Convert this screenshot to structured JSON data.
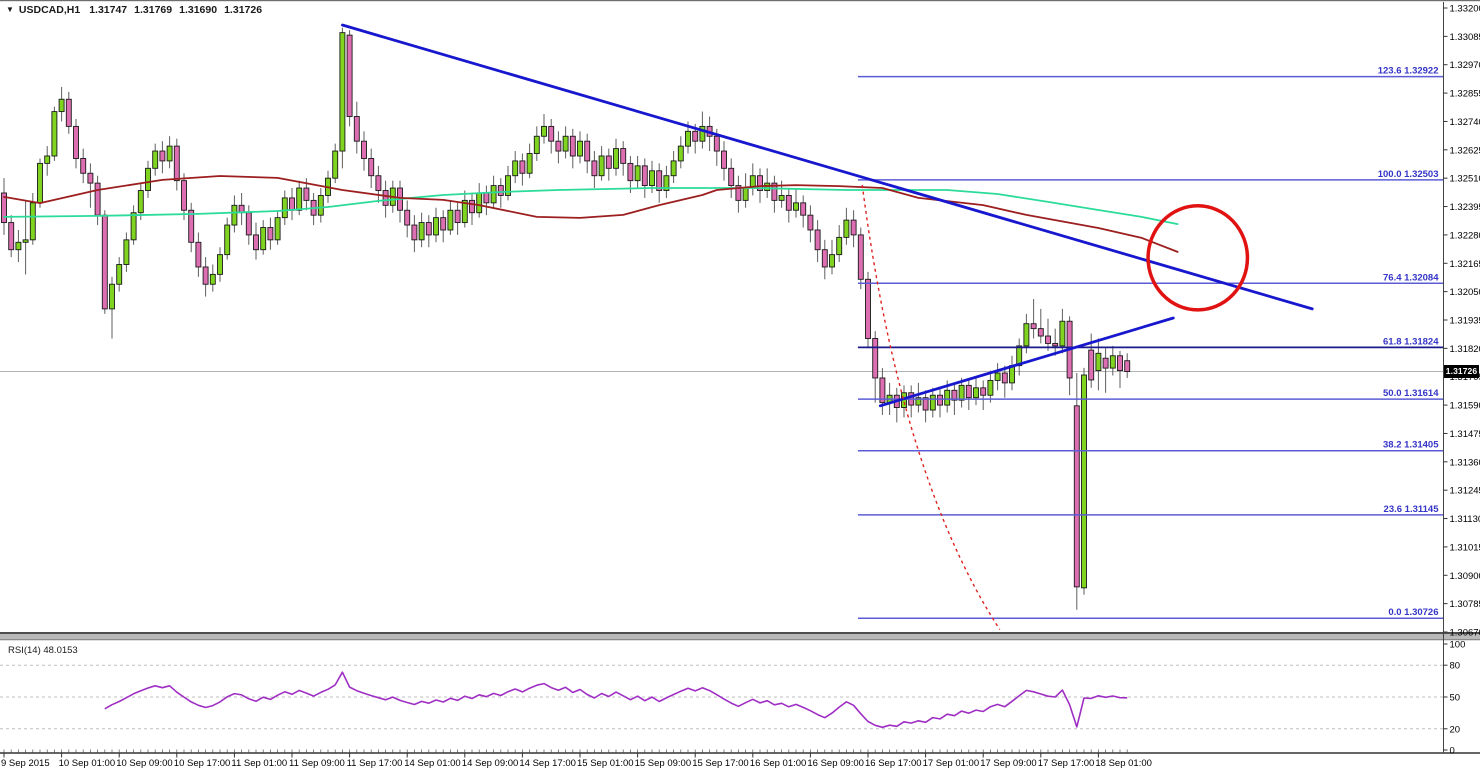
{
  "quote_header": {
    "dropdown_icon": "▼",
    "symbol": "USDCAD,H1",
    "open": "1.31747",
    "high": "1.31769",
    "low": "1.31690",
    "close": "1.31726"
  },
  "price_axis": {
    "ticks": [
      "1.33200",
      "1.33085",
      "1.32970",
      "1.32855",
      "1.32740",
      "1.32625",
      "1.32510",
      "1.32395",
      "1.32280",
      "1.32165",
      "1.32050",
      "1.31935",
      "1.31820",
      "1.31705",
      "1.31590",
      "1.31475",
      "1.31360",
      "1.31245",
      "1.31130",
      "1.31015",
      "1.30900",
      "1.30785",
      "1.30670"
    ],
    "current_price": "1.31726"
  },
  "time_axis": {
    "labels": [
      "9 Sep 2015",
      "10 Sep 01:00",
      "10 Sep 09:00",
      "10 Sep 17:00",
      "11 Sep 01:00",
      "11 Sep 09:00",
      "11 Sep 17:00",
      "14 Sep 01:00",
      "14 Sep 09:00",
      "14 Sep 17:00",
      "15 Sep 01:00",
      "15 Sep 09:00",
      "15 Sep 17:00",
      "16 Sep 01:00",
      "16 Sep 09:00",
      "16 Sep 17:00",
      "17 Sep 01:00",
      "17 Sep 09:00",
      "17 Sep 17:00",
      "18 Sep 01:00"
    ]
  },
  "rsi_panel": {
    "label": "RSI(14) 48.0153",
    "ticks": [
      "100",
      "80",
      "50",
      "20",
      "0"
    ]
  },
  "colors": {
    "bull": "#7FD41F",
    "bear": "#DE6EB2",
    "body_outline": "#1A1A1A",
    "wick": "#5E5E5E",
    "ma_fast": "#2BDB9A",
    "ma_slow": "#9C1E1E",
    "trendline": "#1717CE",
    "fib_line": "#5C5CD6",
    "fib_emphasis": "#1A1A8E",
    "fib_label": "#3434C8",
    "annotation_red": "#E01212",
    "rsi_line": "#9F2FC4",
    "price_line": "#B4B4B4",
    "axis_text": "#000000",
    "grid_dash": "#BFBFBF",
    "tag_bg": "#000000",
    "tag_text": "#FFFFFF"
  },
  "chart_data": {
    "type": "candlestick",
    "symbol": "USDCAD",
    "timeframe": "H1",
    "title": "USDCAD,H1",
    "ohlc_display": {
      "open": 1.31747,
      "high": 1.31769,
      "low": 1.3169,
      "close": 1.31726
    },
    "y_axis": {
      "top": 1.332,
      "bottom": 1.3067,
      "tick_step": 0.00115
    },
    "x_labels": [
      "9 Sep 2015",
      "10 Sep 01:00",
      "10 Sep 09:00",
      "10 Sep 17:00",
      "11 Sep 01:00",
      "11 Sep 09:00",
      "11 Sep 17:00",
      "14 Sep 01:00",
      "14 Sep 09:00",
      "14 Sep 17:00",
      "15 Sep 01:00",
      "15 Sep 09:00",
      "15 Sep 17:00",
      "16 Sep 01:00",
      "16 Sep 09:00",
      "16 Sep 17:00",
      "17 Sep 01:00",
      "17 Sep 09:00",
      "17 Sep 17:00",
      "18 Sep 01:00"
    ],
    "bars_per_label": 8,
    "candles": [
      [
        1.3245,
        1.3251,
        1.3228,
        1.3233
      ],
      [
        1.3233,
        1.3236,
        1.3219,
        1.3222
      ],
      [
        1.3222,
        1.323,
        1.3217,
        1.3225
      ],
      [
        1.3225,
        1.3242,
        1.3212,
        1.3226
      ],
      [
        1.3226,
        1.3245,
        1.3224,
        1.3241
      ],
      [
        1.3241,
        1.3259,
        1.3239,
        1.3257
      ],
      [
        1.3257,
        1.3264,
        1.3252,
        1.326
      ],
      [
        1.326,
        1.328,
        1.3258,
        1.3278
      ],
      [
        1.3278,
        1.3288,
        1.3274,
        1.3283
      ],
      [
        1.3283,
        1.3286,
        1.3269,
        1.3272
      ],
      [
        1.3272,
        1.3275,
        1.3255,
        1.3259
      ],
      [
        1.3259,
        1.3263,
        1.3249,
        1.3253
      ],
      [
        1.3253,
        1.3257,
        1.3239,
        1.3249
      ],
      [
        1.3249,
        1.3252,
        1.3232,
        1.3236
      ],
      [
        1.3236,
        1.3238,
        1.3196,
        1.3198
      ],
      [
        1.3198,
        1.3211,
        1.3186,
        1.3208
      ],
      [
        1.3208,
        1.3219,
        1.3205,
        1.3216
      ],
      [
        1.3216,
        1.3229,
        1.3213,
        1.3226
      ],
      [
        1.3226,
        1.324,
        1.3224,
        1.3237
      ],
      [
        1.3237,
        1.3249,
        1.3234,
        1.3246
      ],
      [
        1.3246,
        1.3258,
        1.3243,
        1.3255
      ],
      [
        1.3255,
        1.3265,
        1.3252,
        1.3262
      ],
      [
        1.3262,
        1.3266,
        1.3253,
        1.3258
      ],
      [
        1.3258,
        1.3268,
        1.3255,
        1.3264
      ],
      [
        1.3264,
        1.3267,
        1.3246,
        1.325
      ],
      [
        1.325,
        1.3253,
        1.3234,
        1.3238
      ],
      [
        1.3238,
        1.3241,
        1.3221,
        1.3225
      ],
      [
        1.3225,
        1.3229,
        1.3211,
        1.3215
      ],
      [
        1.3215,
        1.3219,
        1.3203,
        1.3208
      ],
      [
        1.3208,
        1.3216,
        1.3205,
        1.3212
      ],
      [
        1.3212,
        1.3223,
        1.3209,
        1.322
      ],
      [
        1.322,
        1.3235,
        1.3218,
        1.3232
      ],
      [
        1.3232,
        1.3244,
        1.3229,
        1.324
      ],
      [
        1.324,
        1.3245,
        1.3232,
        1.3237
      ],
      [
        1.3237,
        1.324,
        1.3224,
        1.3228
      ],
      [
        1.3228,
        1.3233,
        1.3218,
        1.3222
      ],
      [
        1.3222,
        1.3234,
        1.322,
        1.3231
      ],
      [
        1.3231,
        1.3235,
        1.3222,
        1.3226
      ],
      [
        1.3226,
        1.3238,
        1.3224,
        1.3235
      ],
      [
        1.3235,
        1.3246,
        1.3232,
        1.3243
      ],
      [
        1.3243,
        1.3247,
        1.3234,
        1.3238
      ],
      [
        1.3238,
        1.325,
        1.3236,
        1.3247
      ],
      [
        1.3247,
        1.3251,
        1.3238,
        1.3242
      ],
      [
        1.3242,
        1.3245,
        1.3232,
        1.3236
      ],
      [
        1.3236,
        1.3247,
        1.3233,
        1.3244
      ],
      [
        1.3244,
        1.3254,
        1.3241,
        1.3251
      ],
      [
        1.3251,
        1.3265,
        1.3249,
        1.3262
      ],
      [
        1.3262,
        1.3312,
        1.3255,
        1.331
      ],
      [
        1.3309,
        1.3311,
        1.3272,
        1.3276
      ],
      [
        1.3276,
        1.3282,
        1.3261,
        1.3266
      ],
      [
        1.3266,
        1.327,
        1.3254,
        1.3259
      ],
      [
        1.3259,
        1.3263,
        1.3247,
        1.3252
      ],
      [
        1.3252,
        1.3256,
        1.3241,
        1.3246
      ],
      [
        1.3246,
        1.325,
        1.3235,
        1.324
      ],
      [
        1.324,
        1.325,
        1.3237,
        1.3247
      ],
      [
        1.3247,
        1.325,
        1.3233,
        1.3238
      ],
      [
        1.3238,
        1.3242,
        1.3227,
        1.3232
      ],
      [
        1.3232,
        1.3236,
        1.3221,
        1.3226
      ],
      [
        1.3226,
        1.3237,
        1.3223,
        1.3233
      ],
      [
        1.3233,
        1.3236,
        1.3223,
        1.3228
      ],
      [
        1.3228,
        1.3239,
        1.3225,
        1.3235
      ],
      [
        1.3235,
        1.3238,
        1.3225,
        1.323
      ],
      [
        1.323,
        1.3242,
        1.3228,
        1.3238
      ],
      [
        1.3238,
        1.3241,
        1.3228,
        1.3233
      ],
      [
        1.3233,
        1.3246,
        1.3231,
        1.3242
      ],
      [
        1.3242,
        1.3245,
        1.3232,
        1.3237
      ],
      [
        1.3237,
        1.3249,
        1.3235,
        1.3245
      ],
      [
        1.3245,
        1.3248,
        1.3236,
        1.3241
      ],
      [
        1.3241,
        1.3252,
        1.3239,
        1.3248
      ],
      [
        1.3248,
        1.3251,
        1.3239,
        1.3244
      ],
      [
        1.3244,
        1.3256,
        1.3242,
        1.3252
      ],
      [
        1.3252,
        1.3262,
        1.3249,
        1.3258
      ],
      [
        1.3258,
        1.3261,
        1.3248,
        1.3253
      ],
      [
        1.3253,
        1.3265,
        1.3251,
        1.3261
      ],
      [
        1.3261,
        1.3272,
        1.3258,
        1.3268
      ],
      [
        1.3268,
        1.3277,
        1.3265,
        1.3272
      ],
      [
        1.3272,
        1.3275,
        1.3261,
        1.3266
      ],
      [
        1.3266,
        1.327,
        1.3257,
        1.3262
      ],
      [
        1.3262,
        1.3272,
        1.3259,
        1.3268
      ],
      [
        1.3268,
        1.3271,
        1.3255,
        1.326
      ],
      [
        1.326,
        1.327,
        1.3257,
        1.3266
      ],
      [
        1.3266,
        1.3269,
        1.3253,
        1.3258
      ],
      [
        1.3258,
        1.3262,
        1.3247,
        1.3252
      ],
      [
        1.3252,
        1.3264,
        1.325,
        1.326
      ],
      [
        1.326,
        1.3263,
        1.325,
        1.3255
      ],
      [
        1.3255,
        1.3267,
        1.3252,
        1.3263
      ],
      [
        1.3263,
        1.3266,
        1.3252,
        1.3257
      ],
      [
        1.3257,
        1.326,
        1.3245,
        1.325
      ],
      [
        1.325,
        1.326,
        1.3247,
        1.3256
      ],
      [
        1.3256,
        1.3259,
        1.3243,
        1.3248
      ],
      [
        1.3248,
        1.3258,
        1.3245,
        1.3254
      ],
      [
        1.3254,
        1.3257,
        1.3241,
        1.3246
      ],
      [
        1.3246,
        1.3256,
        1.3243,
        1.3252
      ],
      [
        1.3252,
        1.3262,
        1.3249,
        1.3258
      ],
      [
        1.3258,
        1.3268,
        1.3255,
        1.3264
      ],
      [
        1.3264,
        1.3274,
        1.3261,
        1.327
      ],
      [
        1.327,
        1.3273,
        1.3261,
        1.3266
      ],
      [
        1.3266,
        1.3278,
        1.3263,
        1.3272
      ],
      [
        1.3272,
        1.3276,
        1.3262,
        1.3268
      ],
      [
        1.3268,
        1.3271,
        1.3256,
        1.3262
      ],
      [
        1.3262,
        1.3266,
        1.325,
        1.3255
      ],
      [
        1.3255,
        1.3259,
        1.3243,
        1.3248
      ],
      [
        1.3248,
        1.3252,
        1.3237,
        1.3242
      ],
      [
        1.3242,
        1.3253,
        1.3239,
        1.3247
      ],
      [
        1.3247,
        1.3257,
        1.3244,
        1.3252
      ],
      [
        1.3252,
        1.3255,
        1.3241,
        1.3246
      ],
      [
        1.3246,
        1.3255,
        1.3243,
        1.3249
      ],
      [
        1.3249,
        1.3252,
        1.3237,
        1.3242
      ],
      [
        1.3242,
        1.325,
        1.3239,
        1.3244
      ],
      [
        1.3244,
        1.3247,
        1.3233,
        1.3238
      ],
      [
        1.3238,
        1.3247,
        1.3235,
        1.3241
      ],
      [
        1.3241,
        1.3244,
        1.3231,
        1.3236
      ],
      [
        1.3236,
        1.324,
        1.3225,
        1.323
      ],
      [
        1.323,
        1.3234,
        1.3217,
        1.3222
      ],
      [
        1.3222,
        1.3226,
        1.321,
        1.3215
      ],
      [
        1.3215,
        1.3226,
        1.3212,
        1.322
      ],
      [
        1.322,
        1.3232,
        1.3217,
        1.3227
      ],
      [
        1.3227,
        1.3239,
        1.3224,
        1.3234
      ],
      [
        1.3234,
        1.3238,
        1.3223,
        1.3228
      ],
      [
        1.3228,
        1.3231,
        1.3206,
        1.321
      ],
      [
        1.321,
        1.3213,
        1.3182,
        1.3186
      ],
      [
        1.3186,
        1.3189,
        1.316,
        1.317
      ],
      [
        1.317,
        1.3174,
        1.3155,
        1.316
      ],
      [
        1.316,
        1.3168,
        1.3155,
        1.3163
      ],
      [
        1.3163,
        1.3166,
        1.3152,
        1.3158
      ],
      [
        1.3158,
        1.3167,
        1.3154,
        1.3164
      ],
      [
        1.3164,
        1.3167,
        1.3154,
        1.3159
      ],
      [
        1.3159,
        1.3168,
        1.3156,
        1.3162
      ],
      [
        1.3162,
        1.3165,
        1.3152,
        1.3157
      ],
      [
        1.3157,
        1.3166,
        1.3154,
        1.3163
      ],
      [
        1.3163,
        1.3166,
        1.3154,
        1.3159
      ],
      [
        1.3159,
        1.3169,
        1.3156,
        1.3165
      ],
      [
        1.3165,
        1.3168,
        1.3155,
        1.3161
      ],
      [
        1.3161,
        1.317,
        1.3158,
        1.3167
      ],
      [
        1.3167,
        1.317,
        1.3157,
        1.3162
      ],
      [
        1.3162,
        1.317,
        1.3159,
        1.3166
      ],
      [
        1.3166,
        1.3169,
        1.3157,
        1.3163
      ],
      [
        1.3163,
        1.3173,
        1.316,
        1.3169
      ],
      [
        1.3169,
        1.3176,
        1.3165,
        1.3172
      ],
      [
        1.3172,
        1.3175,
        1.3162,
        1.3168
      ],
      [
        1.3168,
        1.3179,
        1.3165,
        1.3175
      ],
      [
        1.3175,
        1.3186,
        1.3171,
        1.3183
      ],
      [
        1.3183,
        1.3196,
        1.318,
        1.3192
      ],
      [
        1.3192,
        1.3202,
        1.3186,
        1.319
      ],
      [
        1.319,
        1.3198,
        1.3184,
        1.3187
      ],
      [
        1.3187,
        1.3194,
        1.3181,
        1.3184
      ],
      [
        1.3184,
        1.319,
        1.3179,
        1.3183
      ],
      [
        1.3183,
        1.3198,
        1.318,
        1.3193
      ],
      [
        1.3193,
        1.3195,
        1.3163,
        1.317
      ],
      [
        1.31587,
        1.3172,
        1.3076,
        1.30853
      ],
      [
        1.30849,
        1.31741,
        1.30821,
        1.31712
      ],
      [
        1.31813,
        1.3188,
        1.3166,
        1.31692
      ],
      [
        1.3173,
        1.3186,
        1.3165,
        1.318
      ],
      [
        1.3178,
        1.3182,
        1.3164,
        1.3174
      ],
      [
        1.3174,
        1.3183,
        1.3171,
        1.3179
      ],
      [
        1.3179,
        1.3181,
        1.3166,
        1.3173
      ],
      [
        1.3177,
        1.318,
        1.317,
        1.31726
      ]
    ],
    "moving_averages": [
      {
        "name": "ma-fast-teal",
        "color": "#2BDB9A",
        "points": [
          [
            0,
            1.32353
          ],
          [
            13,
            1.32357
          ],
          [
            27,
            1.32365
          ],
          [
            38,
            1.32377
          ],
          [
            45,
            1.32393
          ],
          [
            52,
            1.32418
          ],
          [
            61,
            1.32442
          ],
          [
            69,
            1.32454
          ],
          [
            77,
            1.32462
          ],
          [
            90,
            1.3247
          ],
          [
            104,
            1.3247
          ],
          [
            117,
            1.32462
          ],
          [
            131,
            1.32462
          ],
          [
            138,
            1.32446
          ],
          [
            145,
            1.32414
          ],
          [
            152,
            1.32381
          ],
          [
            158,
            1.32353
          ],
          [
            163,
            1.32324
          ]
        ]
      },
      {
        "name": "ma-slow-darkred",
        "color": "#9C1E1E",
        "points": [
          [
            0,
            1.32434
          ],
          [
            5,
            1.32409
          ],
          [
            13,
            1.32462
          ],
          [
            22,
            1.32503
          ],
          [
            30,
            1.32519
          ],
          [
            38,
            1.32511
          ],
          [
            47,
            1.32462
          ],
          [
            55,
            1.3243
          ],
          [
            61,
            1.32422
          ],
          [
            66,
            1.32401
          ],
          [
            74,
            1.32353
          ],
          [
            80,
            1.32349
          ],
          [
            86,
            1.32361
          ],
          [
            91,
            1.32401
          ],
          [
            97,
            1.32442
          ],
          [
            99,
            1.32462
          ],
          [
            105,
            1.32478
          ],
          [
            110,
            1.32482
          ],
          [
            116,
            1.32478
          ],
          [
            122,
            1.3247
          ],
          [
            127,
            1.3243
          ],
          [
            136,
            1.32401
          ],
          [
            142,
            1.32361
          ],
          [
            152,
            1.32308
          ],
          [
            158,
            1.32268
          ],
          [
            163,
            1.32211
          ]
        ]
      }
    ],
    "trendlines": [
      {
        "name": "descending-trendline",
        "color": "#1717CE",
        "from_bar": 47,
        "from_price": 1.33131,
        "to_bar": 181.7,
        "to_price": 1.3198
      },
      {
        "name": "ascending-trendline",
        "color": "#1717CE",
        "from_bar": 121.7,
        "from_price": 1.31587,
        "to_bar": 162.4,
        "to_price": 1.31943
      }
    ],
    "projection_dashed": {
      "color": "#E02020",
      "from_bar": 119.2,
      "from_price": 1.32482,
      "control_bar": 124.5,
      "control_price": 1.313,
      "to_bar": 138.3,
      "to_price": 1.3068
    },
    "circle_annotation": {
      "color": "#E01212",
      "center_bar": 165.8,
      "center_price": 1.32187,
      "radius_bars": 6.9,
      "radius_price": 0.00211
    },
    "fibonacci": {
      "start_bar": 118.6,
      "levels": [
        {
          "label": "123.6 1.32922",
          "price": 1.32922
        },
        {
          "label": "100.0 1.32503",
          "price": 1.32503
        },
        {
          "label": "76.4 1.32084",
          "price": 1.32084
        },
        {
          "label": "61.8 1.31824",
          "price": 1.31824,
          "emphasis": true
        },
        {
          "label": "50.0 1.31614",
          "price": 1.31614
        },
        {
          "label": "38.2 1.31405",
          "price": 1.31405
        },
        {
          "label": "23.6 1.31145",
          "price": 1.31145
        },
        {
          "label": "0.0 1.30726",
          "price": 1.30726
        }
      ]
    },
    "current_price": 1.31726,
    "rsi": {
      "period": 14,
      "current": 48.0153,
      "range": [
        0,
        100
      ],
      "grid": [
        20,
        50,
        80
      ]
    }
  }
}
